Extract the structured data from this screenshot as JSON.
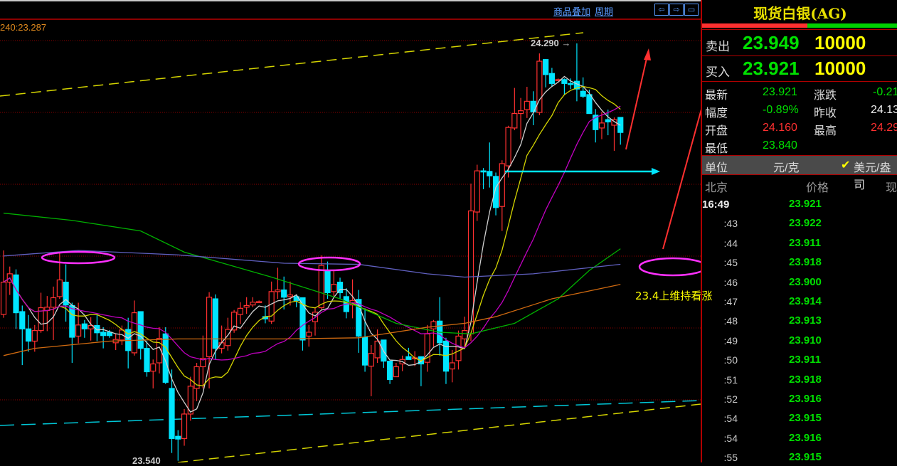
{
  "toolbar": {
    "overlay_label": "商品叠加",
    "period_label": "周期",
    "nav_left_icon": "arrow-left-icon",
    "nav_right_icon": "arrow-right-icon",
    "layout_icon": "panel-layout-icon"
  },
  "ma_readout": "240:23.287",
  "annotations": {
    "note": "23.4上维持看涨",
    "high_label": "24.290",
    "low_label": "23.540"
  },
  "colors": {
    "up": "#ff3030",
    "down": "#00e5ff",
    "grid": "#8b0000",
    "ma_white": "#d0d0d0",
    "ma_yellow": "#d4d400",
    "ma_magenta": "#c000c0",
    "ma_green": "#00b000",
    "ma_blue": "#6060c0",
    "ma_orange": "#d06a10"
  },
  "panel": {
    "title": "现货白银(AG)",
    "sell": {
      "label": "卖出",
      "price": "23.949",
      "volume": "10000"
    },
    "buy": {
      "label": "买入",
      "price": "23.921",
      "volume": "10000"
    },
    "stats": {
      "last_label": "最新",
      "last": "23.921",
      "change_label": "涨跌",
      "change": "-0.21",
      "range_label": "幅度",
      "range": "-0.89%",
      "prev_close_label": "昨收",
      "prev_close": "24.13",
      "open_label": "开盘",
      "open": "24.160",
      "high_label": "最高",
      "high": "24.29",
      "low_label": "最低",
      "low": "23.840"
    },
    "unit": {
      "label": "单位",
      "option1": "元/克",
      "option2": "美元/盎司",
      "selected": "option2"
    },
    "ticks_header": {
      "time": "北京",
      "price": "价格",
      "vol": "现"
    },
    "ticks": [
      {
        "time": "16:49",
        "price": "23.921"
      },
      {
        "time": ":43",
        "price": "23.922"
      },
      {
        "time": ":44",
        "price": "23.911"
      },
      {
        "time": ":45",
        "price": "23.918"
      },
      {
        "time": ":46",
        "price": "23.900"
      },
      {
        "time": ":47",
        "price": "23.914"
      },
      {
        "time": ":48",
        "price": "23.913"
      },
      {
        "time": ":49",
        "price": "23.910"
      },
      {
        "time": ":50",
        "price": "23.911"
      },
      {
        "time": ":51",
        "price": "23.918"
      },
      {
        "time": ":52",
        "price": "23.916"
      },
      {
        "time": ":54",
        "price": "23.915"
      },
      {
        "time": ":54",
        "price": "23.916"
      },
      {
        "time": ":55",
        "price": "23.915"
      }
    ]
  },
  "chart_data": {
    "type": "candlestick",
    "ylim": [
      23.537,
      24.368
    ],
    "grid": true,
    "ohlc": [
      [
        23.803,
        23.918,
        23.797,
        23.861
      ],
      [
        23.861,
        23.889,
        23.838,
        23.876
      ],
      [
        23.874,
        23.884,
        23.777,
        23.806
      ],
      [
        23.808,
        23.819,
        23.712,
        23.777
      ],
      [
        23.777,
        23.802,
        23.736,
        23.755
      ],
      [
        23.755,
        23.784,
        23.736,
        23.774
      ],
      [
        23.774,
        23.842,
        23.77,
        23.815
      ],
      [
        23.81,
        23.836,
        23.773,
        23.816
      ],
      [
        23.816,
        23.853,
        23.757,
        23.833
      ],
      [
        23.835,
        23.916,
        23.831,
        23.865
      ],
      [
        23.861,
        23.893,
        23.79,
        23.82
      ],
      [
        23.819,
        23.824,
        23.716,
        23.762
      ],
      [
        23.764,
        23.824,
        23.751,
        23.784
      ],
      [
        23.786,
        23.793,
        23.761,
        23.777
      ],
      [
        23.777,
        23.798,
        23.756,
        23.783
      ],
      [
        23.783,
        23.802,
        23.755,
        23.77
      ],
      [
        23.771,
        23.78,
        23.742,
        23.765
      ],
      [
        23.771,
        23.775,
        23.761,
        23.765
      ],
      [
        23.752,
        23.768,
        23.739,
        23.758
      ],
      [
        23.757,
        23.783,
        23.748,
        23.775
      ],
      [
        23.776,
        23.797,
        23.706,
        23.738
      ],
      [
        23.734,
        23.828,
        23.729,
        23.806
      ],
      [
        23.808,
        23.808,
        23.722,
        23.742
      ],
      [
        23.742,
        23.755,
        23.691,
        23.7
      ],
      [
        23.701,
        23.722,
        23.67,
        23.714
      ],
      [
        23.716,
        23.78,
        23.697,
        23.76
      ],
      [
        23.768,
        23.78,
        23.678,
        23.681
      ],
      [
        23.67,
        23.704,
        23.554,
        23.58
      ],
      [
        23.584,
        23.595,
        23.54,
        23.579
      ],
      [
        23.58,
        23.633,
        23.567,
        23.624
      ],
      [
        23.624,
        23.691,
        23.612,
        23.674
      ],
      [
        23.67,
        23.716,
        23.647,
        23.709
      ],
      [
        23.709,
        23.765,
        23.67,
        23.724
      ],
      [
        23.727,
        23.843,
        23.67,
        23.834
      ],
      [
        23.831,
        23.839,
        23.722,
        23.742
      ],
      [
        23.742,
        23.783,
        23.733,
        23.752
      ],
      [
        23.747,
        23.797,
        23.738,
        23.776
      ],
      [
        23.775,
        23.811,
        23.77,
        23.807
      ],
      [
        23.803,
        23.825,
        23.786,
        23.814
      ],
      [
        23.816,
        23.834,
        23.804,
        23.819
      ],
      [
        23.82,
        23.834,
        23.816,
        23.825
      ],
      [
        23.826,
        23.828,
        23.824,
        23.826
      ],
      [
        23.799,
        23.819,
        23.787,
        23.795
      ],
      [
        23.791,
        23.862,
        23.786,
        23.844
      ],
      [
        23.844,
        23.887,
        23.831,
        23.847
      ],
      [
        23.847,
        23.871,
        23.812,
        23.834
      ],
      [
        23.835,
        23.862,
        23.819,
        23.838
      ],
      [
        23.835,
        23.839,
        23.816,
        23.828
      ],
      [
        23.833,
        23.833,
        23.738,
        23.757
      ],
      [
        23.764,
        23.784,
        23.745,
        23.771
      ],
      [
        23.79,
        23.816,
        23.765,
        23.807
      ],
      [
        23.815,
        23.909,
        23.812,
        23.891
      ],
      [
        23.881,
        23.898,
        23.831,
        23.842
      ],
      [
        23.844,
        23.881,
        23.836,
        23.857
      ],
      [
        23.861,
        23.869,
        23.831,
        23.842
      ],
      [
        23.835,
        23.85,
        23.796,
        23.808
      ],
      [
        23.82,
        23.866,
        23.796,
        23.828
      ],
      [
        23.83,
        23.847,
        23.734,
        23.764
      ],
      [
        23.762,
        23.814,
        23.7,
        23.712
      ],
      [
        23.71,
        23.748,
        23.656,
        23.733
      ],
      [
        23.725,
        23.776,
        23.716,
        23.755
      ],
      [
        23.757,
        23.757,
        23.707,
        23.719
      ],
      [
        23.719,
        23.719,
        23.678,
        23.686
      ],
      [
        23.691,
        23.716,
        23.691,
        23.709
      ],
      [
        23.714,
        23.729,
        23.701,
        23.722
      ],
      [
        23.727,
        23.743,
        23.722,
        23.722
      ],
      [
        23.724,
        23.737,
        23.71,
        23.725
      ],
      [
        23.727,
        23.727,
        23.674,
        23.714
      ],
      [
        23.717,
        23.784,
        23.7,
        23.768
      ],
      [
        23.777,
        23.793,
        23.745,
        23.79
      ],
      [
        23.791,
        23.834,
        23.729,
        23.752
      ],
      [
        23.755,
        23.761,
        23.678,
        23.701
      ],
      [
        23.705,
        23.739,
        23.681,
        23.716
      ],
      [
        23.72,
        23.774,
        23.704,
        23.764
      ],
      [
        23.759,
        23.799,
        23.742,
        23.774
      ],
      [
        23.768,
        24.038,
        23.755,
        23.989
      ],
      [
        23.987,
        24.072,
        23.971,
        24.061
      ],
      [
        24.061,
        24.066,
        24.028,
        24.059
      ],
      [
        24.06,
        24.112,
        24.031,
        24.052
      ],
      [
        24.051,
        24.058,
        23.981,
        23.995
      ],
      [
        23.997,
        24.08,
        23.953,
        24.074
      ],
      [
        24.07,
        24.142,
        24.049,
        24.139
      ],
      [
        24.138,
        24.21,
        24.134,
        24.164
      ],
      [
        24.164,
        24.192,
        24.118,
        24.169
      ],
      [
        24.171,
        24.212,
        24.156,
        24.186
      ],
      [
        24.186,
        24.204,
        24.143,
        24.167
      ],
      [
        24.166,
        24.272,
        24.161,
        24.258
      ],
      [
        24.261,
        24.262,
        24.211,
        24.234
      ],
      [
        24.236,
        24.246,
        24.213,
        24.218
      ],
      [
        24.225,
        24.227,
        24.222,
        24.225
      ],
      [
        24.225,
        24.227,
        24.198,
        24.218
      ],
      [
        24.218,
        24.227,
        24.208,
        24.217
      ],
      [
        24.222,
        24.29,
        24.186,
        24.208
      ],
      [
        24.204,
        24.229,
        24.192,
        24.195
      ],
      [
        24.198,
        24.207,
        24.164,
        24.164
      ],
      [
        24.161,
        24.172,
        24.112,
        24.135
      ],
      [
        24.138,
        24.167,
        24.118,
        24.147
      ],
      [
        24.153,
        24.171,
        24.125,
        24.149
      ],
      [
        24.143,
        24.157,
        24.097,
        24.153
      ],
      [
        24.157,
        24.157,
        24.108,
        24.13
      ]
    ],
    "computed_ma_periods": [
      5,
      10,
      20
    ],
    "long_ma": [
      {
        "color_key": "ma_green",
        "points": [
          [
            0,
            23.985
          ],
          [
            11,
            23.972
          ],
          [
            22,
            23.953
          ],
          [
            29,
            23.915
          ],
          [
            43,
            23.87
          ],
          [
            54,
            23.831
          ],
          [
            63,
            23.787
          ],
          [
            70,
            23.771
          ],
          [
            75,
            23.768
          ],
          [
            82,
            23.787
          ],
          [
            89,
            23.831
          ],
          [
            94,
            23.882
          ],
          [
            99,
            23.921
          ]
        ]
      },
      {
        "color_key": "ma_blue",
        "points": [
          [
            0,
            23.908
          ],
          [
            12,
            23.918
          ],
          [
            28,
            23.91
          ],
          [
            45,
            23.895
          ],
          [
            57,
            23.893
          ],
          [
            68,
            23.876
          ],
          [
            74,
            23.87
          ],
          [
            85,
            23.876
          ],
          [
            99,
            23.893
          ]
        ]
      },
      {
        "color_key": "ma_orange",
        "points": [
          [
            0,
            23.729
          ],
          [
            5,
            23.742
          ],
          [
            17,
            23.755
          ],
          [
            28,
            23.759
          ],
          [
            45,
            23.759
          ],
          [
            57,
            23.761
          ],
          [
            68,
            23.78
          ],
          [
            74,
            23.787
          ],
          [
            79,
            23.799
          ],
          [
            88,
            23.831
          ],
          [
            99,
            23.857
          ]
        ]
      }
    ]
  }
}
